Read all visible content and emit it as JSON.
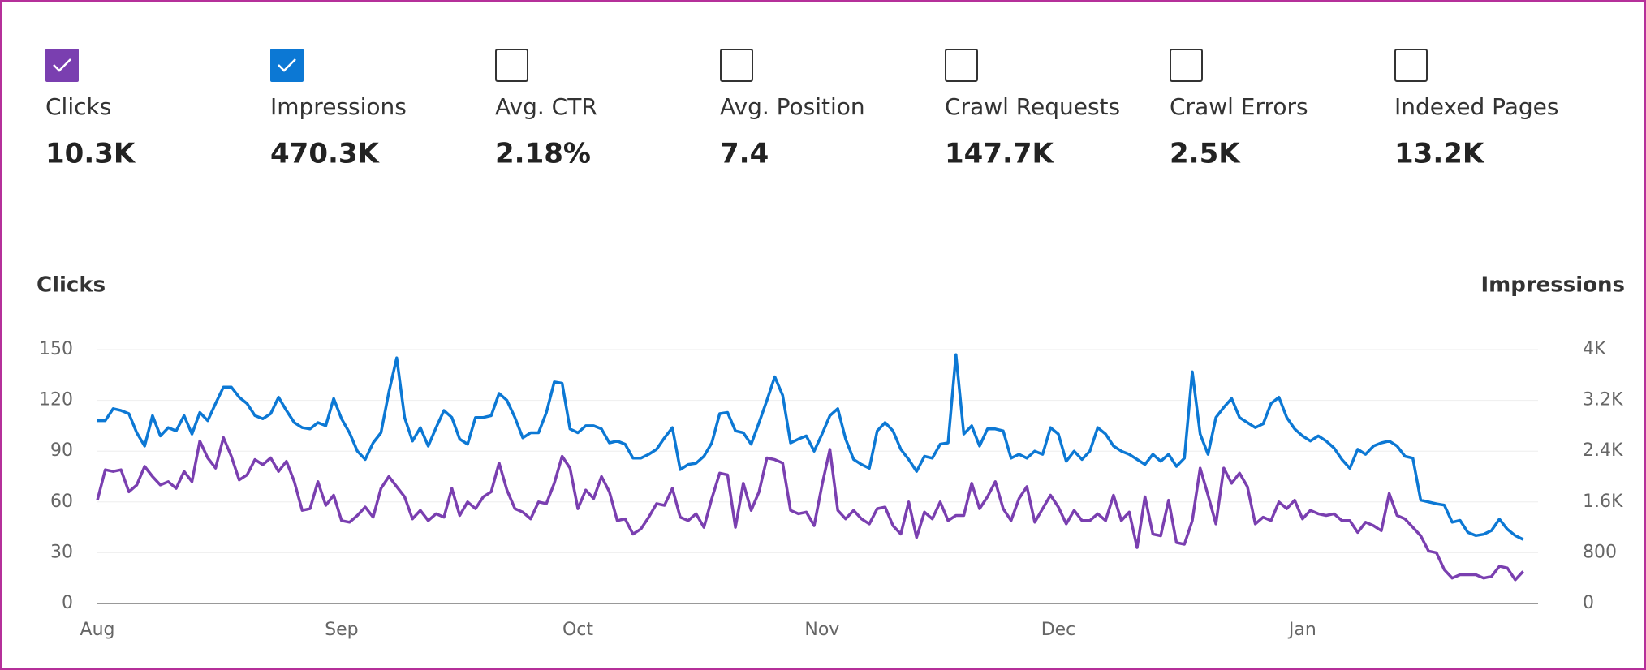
{
  "metrics": [
    {
      "label": "Clicks",
      "value": "10.3K",
      "checked": true,
      "color": "#7a3fb0"
    },
    {
      "label": "Impressions",
      "value": "470.3K",
      "checked": true,
      "color": "#0c78d4"
    },
    {
      "label": "Avg. CTR",
      "value": "2.18%",
      "checked": false
    },
    {
      "label": "Avg. Position",
      "value": "7.4",
      "checked": false
    },
    {
      "label": "Crawl Requests",
      "value": "147.7K",
      "checked": false
    },
    {
      "label": "Crawl Errors",
      "value": "2.5K",
      "checked": false
    },
    {
      "label": "Indexed Pages",
      "value": "13.2K",
      "checked": false
    }
  ],
  "chart_data": {
    "type": "line",
    "ylabel": "Clicks",
    "y2label": "Impressions",
    "categories": [
      "Aug",
      null,
      null,
      null,
      null,
      null,
      null,
      null,
      null,
      null,
      null,
      null,
      null,
      null,
      null,
      null,
      null,
      null,
      null,
      null,
      null,
      null,
      null,
      null,
      null,
      null,
      null,
      null,
      null,
      null,
      null,
      "Sep",
      null,
      null,
      null,
      null,
      null,
      null,
      null,
      null,
      null,
      null,
      null,
      null,
      null,
      null,
      null,
      null,
      null,
      null,
      null,
      null,
      null,
      null,
      null,
      null,
      null,
      null,
      null,
      null,
      null,
      "Oct",
      null,
      null,
      null,
      null,
      null,
      null,
      null,
      null,
      null,
      null,
      null,
      null,
      null,
      null,
      null,
      null,
      null,
      null,
      null,
      null,
      null,
      null,
      null,
      null,
      null,
      null,
      null,
      null,
      null,
      null,
      "Nov",
      null,
      null,
      null,
      null,
      null,
      null,
      null,
      null,
      null,
      null,
      null,
      null,
      null,
      null,
      null,
      null,
      null,
      null,
      null,
      null,
      null,
      null,
      null,
      null,
      null,
      null,
      null,
      null,
      null,
      "Dec",
      null,
      null,
      null,
      null,
      null,
      null,
      null,
      null,
      null,
      null,
      null,
      null,
      null,
      null,
      null,
      null,
      null,
      null,
      null,
      null,
      null,
      null,
      null,
      null,
      null,
      null,
      null,
      null,
      null,
      null,
      "Jan",
      null,
      null,
      null,
      null,
      null,
      null,
      null,
      null,
      null,
      null,
      null,
      null,
      null,
      null,
      null,
      null,
      null,
      null,
      null,
      null,
      null,
      null,
      null,
      null,
      null,
      null,
      null,
      null
    ],
    "series": [
      {
        "name": "Clicks",
        "color": "#7a3fb0",
        "values": [
          61,
          79,
          78,
          79,
          66,
          70,
          81,
          75,
          70,
          72,
          68,
          78,
          72,
          96,
          86,
          80,
          98,
          87,
          73,
          76,
          85,
          82,
          86,
          78,
          84,
          72,
          55,
          56,
          72,
          58,
          64,
          49,
          48,
          52,
          57,
          51,
          68,
          75,
          69,
          63,
          50,
          55,
          49,
          53,
          51,
          68,
          52,
          60,
          56,
          63,
          66,
          83,
          67,
          56,
          54,
          50,
          60,
          59,
          71,
          87,
          80,
          56,
          67,
          62,
          75,
          66,
          49,
          50,
          41,
          44,
          51,
          59,
          58,
          68,
          51,
          49,
          53,
          45,
          62,
          77,
          76,
          45,
          71,
          55,
          66,
          86,
          85,
          83,
          55,
          53,
          54,
          46,
          70,
          91,
          55,
          50,
          55,
          50,
          47,
          56,
          57,
          46,
          41,
          60,
          39,
          54,
          50,
          60,
          49,
          52,
          52,
          71,
          56,
          63,
          72,
          56,
          49,
          62,
          69,
          48,
          56,
          64,
          57,
          47,
          55,
          49,
          49,
          53,
          49,
          64,
          49,
          54,
          33,
          63,
          41,
          40,
          61,
          36,
          35,
          49,
          80,
          64,
          47,
          80,
          71,
          77,
          69,
          47,
          51,
          49,
          60,
          56,
          61,
          50,
          55,
          53,
          52,
          53,
          49,
          49,
          42,
          48,
          46,
          43,
          65,
          52,
          50,
          45,
          40,
          31,
          30,
          20,
          15,
          17,
          17,
          17,
          15,
          16,
          22,
          21,
          14,
          19
        ]
      },
      {
        "name": "Impressions",
        "color": "#0c78d4",
        "axis": "y2",
        "values": [
          2880,
          2880,
          3070,
          3040,
          2990,
          2690,
          2480,
          2960,
          2640,
          2770,
          2720,
          2960,
          2670,
          3010,
          2880,
          3150,
          3410,
          3410,
          3250,
          3150,
          2960,
          2910,
          2990,
          3250,
          3040,
          2850,
          2770,
          2750,
          2850,
          2800,
          3230,
          2910,
          2690,
          2400,
          2270,
          2530,
          2690,
          3330,
          3870,
          2930,
          2560,
          2770,
          2480,
          2770,
          3040,
          2930,
          2590,
          2510,
          2930,
          2930,
          2960,
          3310,
          3200,
          2930,
          2610,
          2690,
          2690,
          3010,
          3490,
          3470,
          2750,
          2690,
          2800,
          2800,
          2750,
          2530,
          2560,
          2510,
          2290,
          2290,
          2350,
          2430,
          2610,
          2770,
          2110,
          2190,
          2210,
          2320,
          2530,
          2990,
          3010,
          2720,
          2690,
          2510,
          2850,
          3200,
          3570,
          3280,
          2530,
          2590,
          2640,
          2400,
          2670,
          2960,
          3070,
          2590,
          2270,
          2190,
          2130,
          2720,
          2850,
          2720,
          2430,
          2270,
          2080,
          2320,
          2290,
          2510,
          2530,
          3920,
          2670,
          2800,
          2480,
          2750,
          2750,
          2720,
          2290,
          2350,
          2290,
          2400,
          2350,
          2770,
          2670,
          2240,
          2400,
          2270,
          2400,
          2770,
          2670,
          2480,
          2400,
          2350,
          2270,
          2190,
          2350,
          2240,
          2350,
          2160,
          2290,
          3650,
          2670,
          2350,
          2930,
          3090,
          3230,
          2930,
          2850,
          2770,
          2830,
          3150,
          3250,
          2930,
          2750,
          2640,
          2560,
          2640,
          2560,
          2450,
          2270,
          2130,
          2430,
          2350,
          2480,
          2530,
          2560,
          2480,
          2320,
          2290,
          1630,
          1600,
          1570,
          1550,
          1280,
          1310,
          1120,
          1070,
          1090,
          1150,
          1330,
          1170,
          1070,
          1010
        ]
      }
    ],
    "ylim": [
      0,
      150
    ],
    "yticks": [
      0,
      30,
      60,
      90,
      120,
      150
    ],
    "y2lim": [
      0,
      4000
    ],
    "y2ticks": [
      0,
      800,
      {
        "value": 1600,
        "label": "1.6K"
      },
      {
        "value": 2400,
        "label": "2.4K"
      },
      {
        "value": 3200,
        "label": "3.2K"
      },
      {
        "value": 4000,
        "label": "4K"
      }
    ],
    "grid": true
  }
}
